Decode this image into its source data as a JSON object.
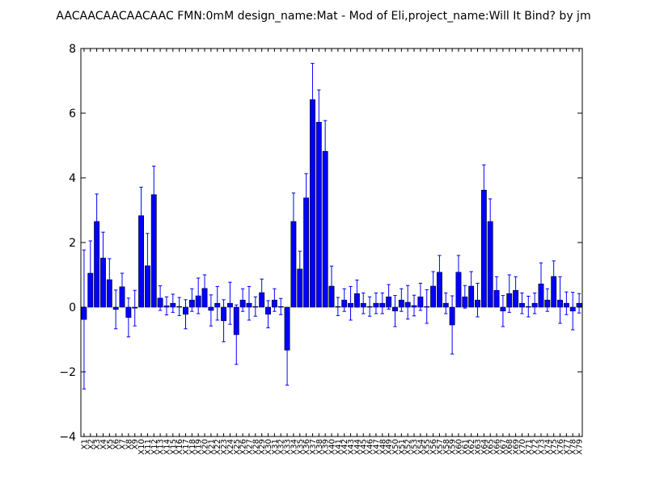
{
  "chart_data": {
    "type": "bar",
    "title": "AACAACAACAACAAC  FMN:0mM  design_name:Mat - Mod of Eli,project_name:Will It Bind? by jm",
    "xlabel": "",
    "ylabel": "",
    "ylim": [
      -4,
      8
    ],
    "yticks": [
      -4,
      -2,
      0,
      2,
      4,
      6,
      8
    ],
    "ytick_labels": [
      "−4",
      "−2",
      "0",
      "2",
      "4",
      "6",
      "8"
    ],
    "grid": false,
    "bar_color": "#0000ff",
    "errorbar_color": "#0000ff",
    "categories": [
      "X1",
      "X2",
      "X3",
      "X4",
      "X5",
      "X6",
      "X7",
      "X8",
      "X9",
      "X10",
      "X11",
      "X12",
      "X13",
      "X14",
      "X15",
      "X16",
      "X17",
      "X18",
      "X19",
      "X20",
      "X21",
      "X22",
      "X23",
      "X24",
      "X25",
      "X26",
      "X27",
      "X28",
      "X29",
      "X30",
      "X31",
      "X32",
      "X33",
      "X34",
      "X35",
      "X36",
      "X37",
      "X38",
      "X39",
      "X40",
      "X41",
      "X42",
      "X43",
      "X44",
      "X45",
      "X46",
      "X47",
      "X48",
      "X49",
      "X50",
      "X51",
      "X52",
      "X53",
      "X54",
      "X55",
      "X56",
      "X57",
      "X58",
      "X59",
      "X60",
      "X61",
      "X62",
      "X63",
      "X64",
      "X65",
      "X66",
      "X67",
      "X68",
      "X69",
      "X70",
      "X71",
      "X72",
      "X73",
      "X74",
      "X75",
      "X76",
      "X77",
      "X78",
      "X79"
    ],
    "values": [
      -0.38,
      1.05,
      2.65,
      1.52,
      0.85,
      -0.07,
      0.63,
      -0.32,
      -0.03,
      2.83,
      1.28,
      3.48,
      0.28,
      0.04,
      0.12,
      0.02,
      -0.22,
      0.22,
      0.35,
      0.58,
      -0.1,
      0.12,
      -0.42,
      0.12,
      -0.85,
      0.22,
      0.12,
      0.02,
      0.45,
      -0.22,
      0.22,
      0.02,
      -1.33,
      2.65,
      1.18,
      3.38,
      6.42,
      5.72,
      4.82,
      0.65,
      0.02,
      0.22,
      0.12,
      0.42,
      0.12,
      0.02,
      0.12,
      0.12,
      0.32,
      -0.12,
      0.22,
      0.15,
      0.05,
      0.32,
      0.02,
      0.65,
      1.08,
      0.12,
      -0.55,
      1.08,
      0.32,
      0.65,
      0.22,
      3.62,
      2.65,
      0.52,
      -0.12,
      0.42,
      0.52,
      0.12,
      0.02,
      0.12,
      0.72,
      0.22,
      0.95,
      0.22,
      0.12,
      -0.12,
      0.12
    ],
    "errors": [
      2.15,
      1.0,
      0.85,
      0.8,
      0.65,
      0.6,
      0.42,
      0.6,
      0.55,
      0.88,
      1.0,
      0.88,
      0.38,
      0.28,
      0.28,
      0.28,
      0.45,
      0.35,
      0.55,
      0.42,
      0.48,
      0.52,
      0.65,
      0.65,
      0.92,
      0.35,
      0.52,
      0.3,
      0.42,
      0.42,
      0.35,
      0.25,
      1.08,
      0.88,
      0.55,
      0.75,
      1.12,
      1.0,
      0.95,
      0.62,
      0.28,
      0.35,
      0.52,
      0.42,
      0.32,
      0.3,
      0.32,
      0.32,
      0.38,
      0.48,
      0.35,
      0.52,
      0.32,
      0.42,
      0.52,
      0.45,
      0.52,
      0.32,
      0.9,
      0.52,
      0.35,
      0.45,
      0.52,
      0.78,
      0.7,
      0.42,
      0.48,
      0.58,
      0.42,
      0.32,
      0.32,
      0.32,
      0.65,
      0.35,
      0.48,
      0.72,
      0.35,
      0.58,
      0.3
    ]
  }
}
